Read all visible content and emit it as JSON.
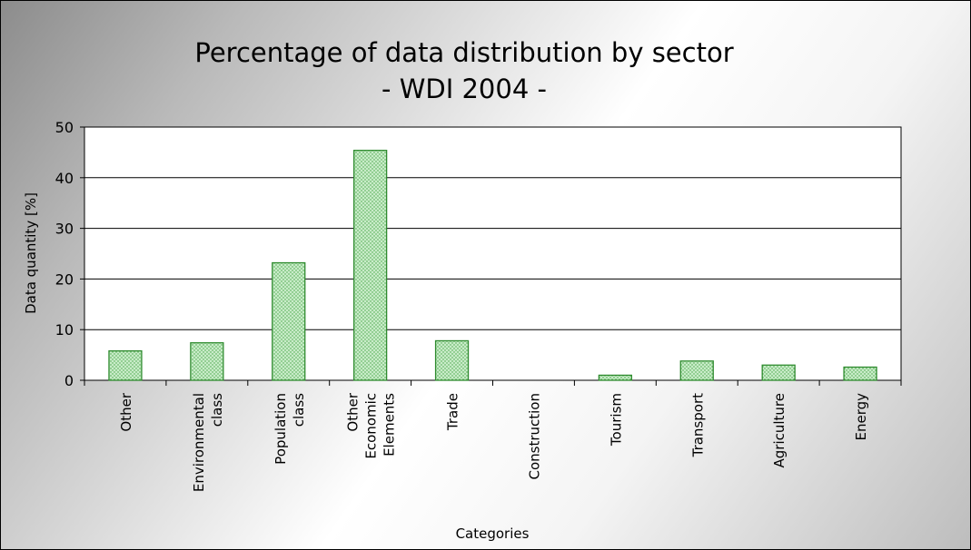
{
  "chart_data": {
    "type": "bar",
    "title": "Percentage of data distribution by sector",
    "subtitle": "- WDI 2004 -",
    "xlabel": "Categories",
    "ylabel": "Data quantity [%]",
    "ylim": [
      0,
      50
    ],
    "yticks": [
      0,
      10,
      20,
      30,
      40,
      50
    ],
    "grid": "horizontal",
    "categories": [
      [
        "Other"
      ],
      [
        "Environmental",
        "class"
      ],
      [
        "Population",
        "class"
      ],
      [
        "Other",
        "Economic",
        "Elements"
      ],
      [
        "Trade"
      ],
      [
        "Construction"
      ],
      [
        "Tourism"
      ],
      [
        "Transport"
      ],
      [
        "Agriculture"
      ],
      [
        "Energy"
      ]
    ],
    "values": [
      5.8,
      7.4,
      23.2,
      45.4,
      7.8,
      0,
      1.0,
      3.8,
      3.0,
      2.6
    ],
    "colors": {
      "bar_fill": "#c8ecc8",
      "bar_stroke": "#2e8b2e",
      "bar_dot": "#43a243",
      "plot_bg": "#ffffff",
      "gridline": "#000000"
    }
  }
}
